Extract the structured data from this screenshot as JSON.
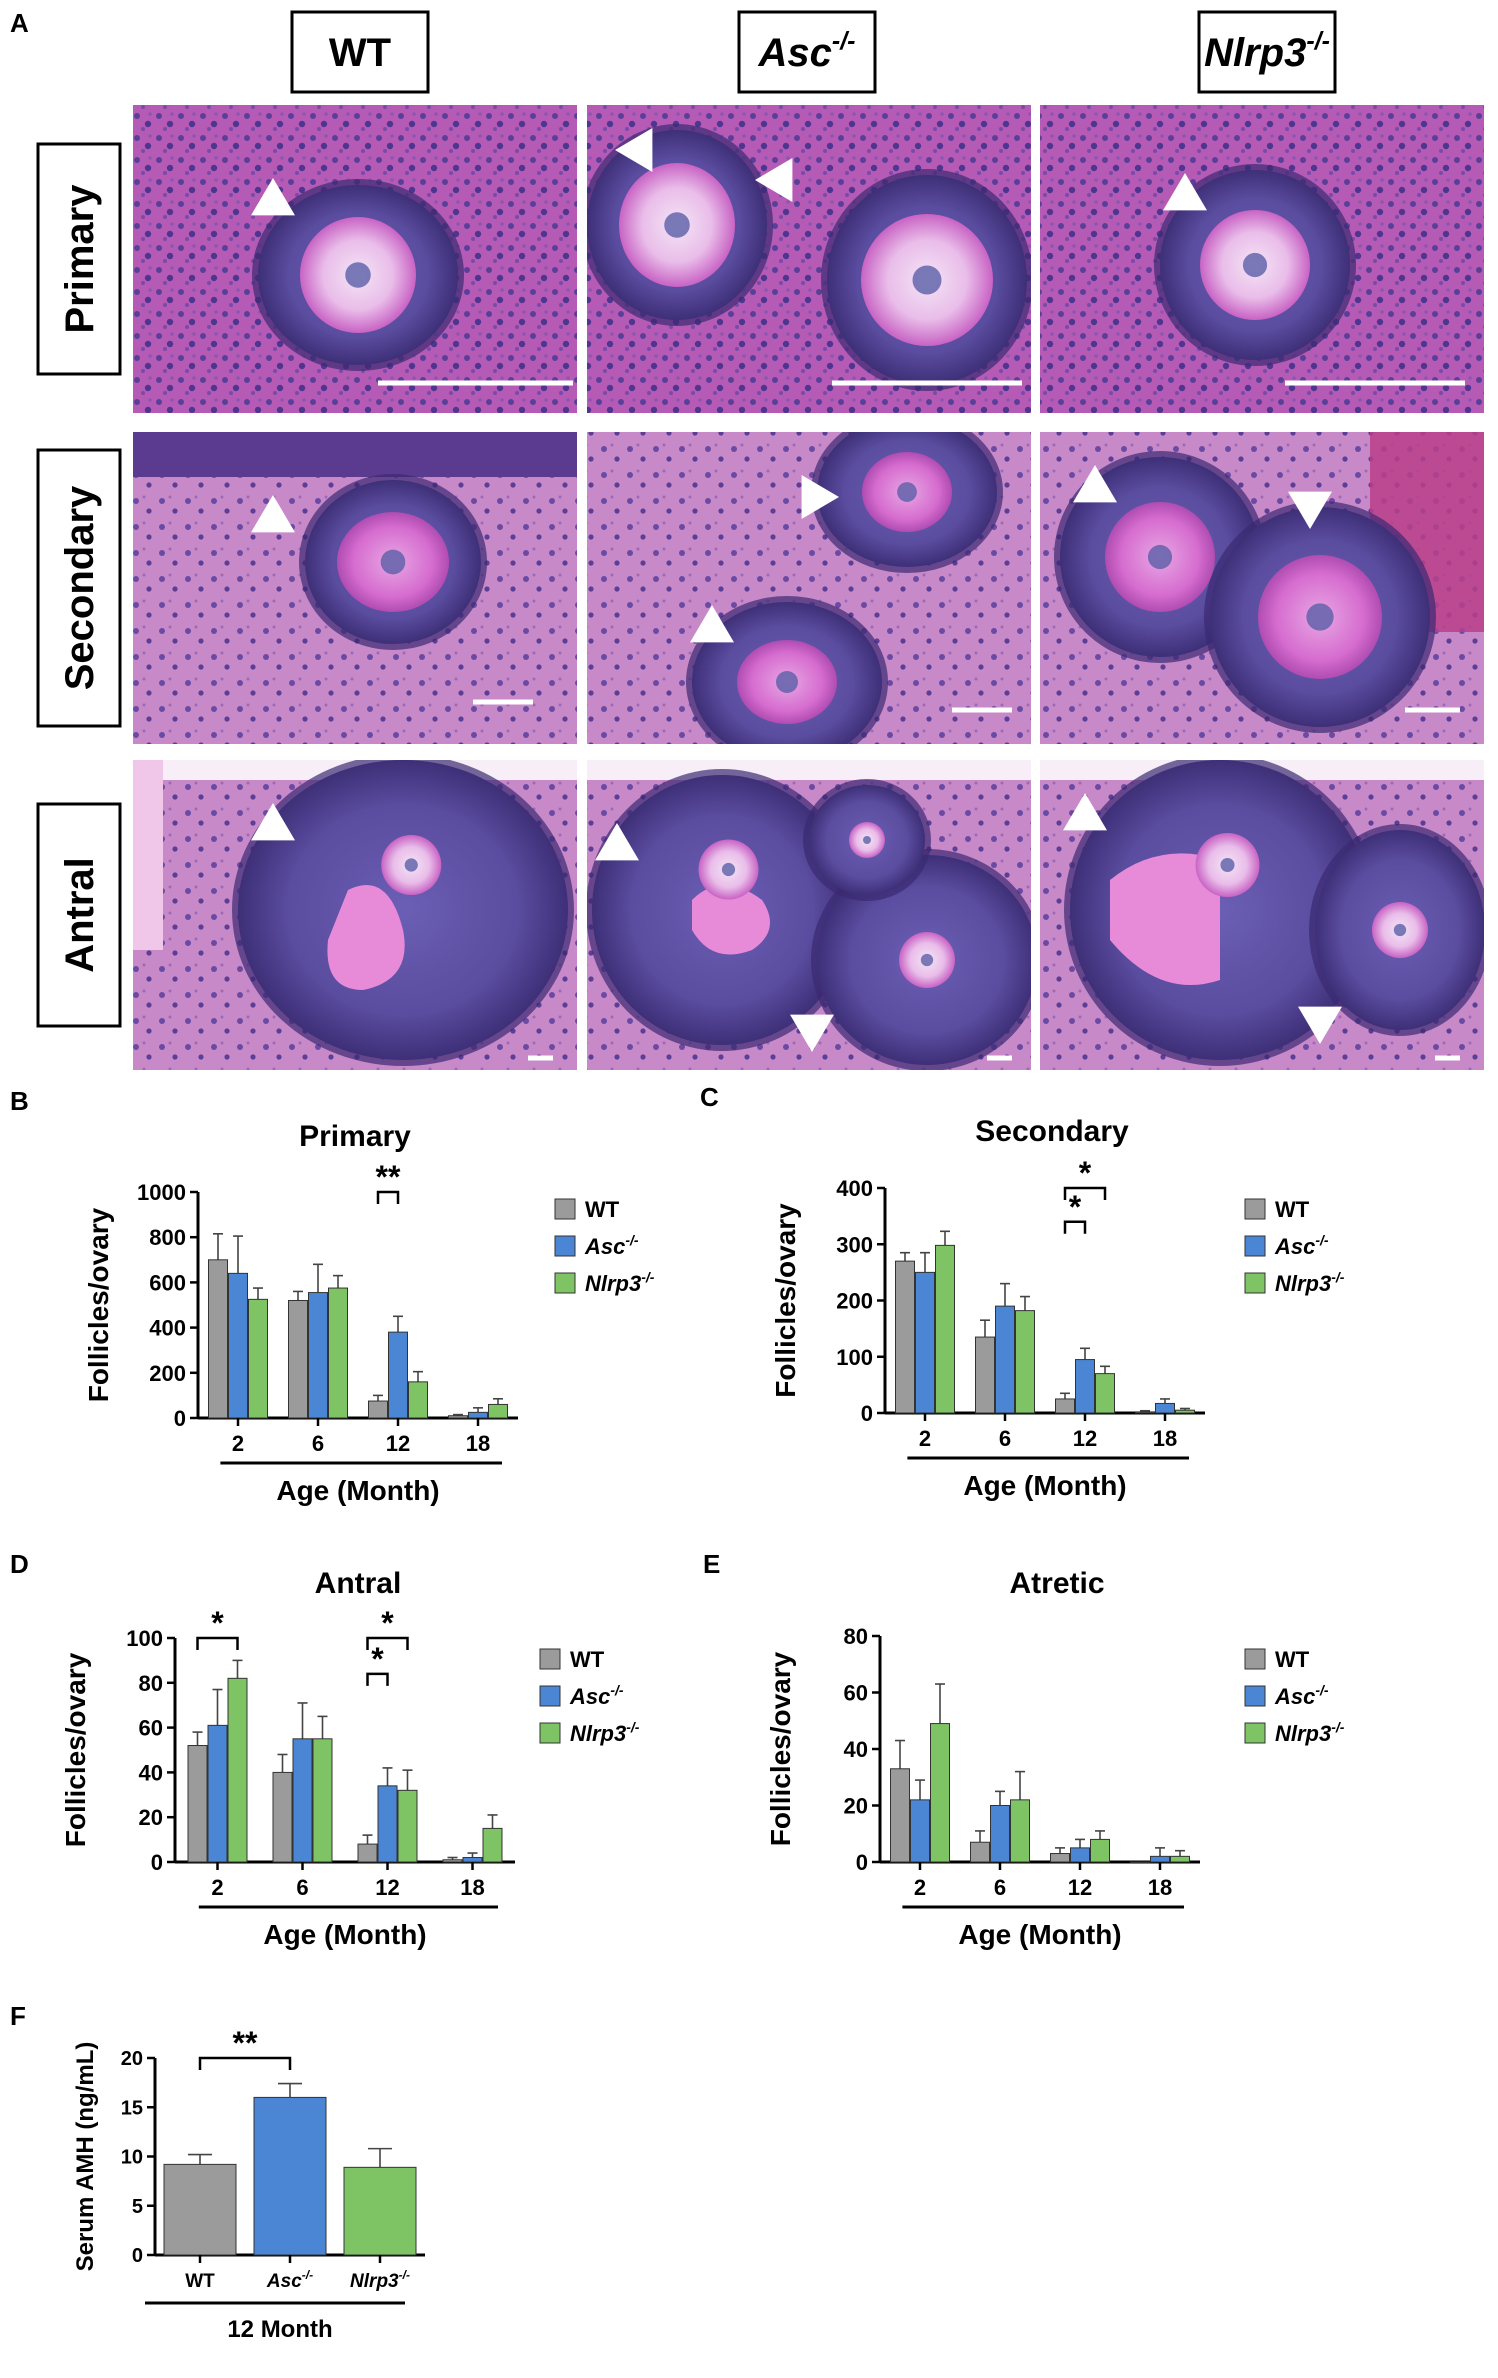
{
  "panel_letters": [
    "A",
    "B",
    "C",
    "D",
    "E",
    "F"
  ],
  "colors": {
    "WT": "#9b9b9b",
    "Asc": "#4a86d4",
    "Nlrp3": "#7ec465",
    "tissue_dark": "#4a3a8a",
    "tissue_pink": "#c75cc0",
    "tissue_light": "#e3b8e6"
  },
  "micrograph": {
    "columns": [
      {
        "base": "WT",
        "sup": ""
      },
      {
        "base": "Asc",
        "sup": "-/-"
      },
      {
        "base": "Nlrp3",
        "sup": "-/-"
      }
    ],
    "rows": [
      "Primary",
      "Secondary",
      "Antral"
    ]
  },
  "legend": [
    {
      "key": "WT",
      "base": "WT",
      "sup": ""
    },
    {
      "key": "Asc",
      "base": "Asc",
      "sup": "-/-"
    },
    {
      "key": "Nlrp3",
      "base": "Nlrp3",
      "sup": "-/-"
    }
  ],
  "chart_data": [
    {
      "id": "B",
      "type": "bar",
      "title": "Primary",
      "xlabel": "Age (Month)",
      "ylabel": "Follicles/ovary",
      "categories": [
        "2",
        "6",
        "12",
        "18"
      ],
      "ylim": [
        0,
        1000
      ],
      "yticks": [
        0,
        200,
        400,
        600,
        800,
        1000
      ],
      "series": [
        {
          "key": "WT",
          "values": [
            700,
            520,
            75,
            10
          ],
          "errors": [
            115,
            40,
            25,
            5
          ]
        },
        {
          "key": "Asc",
          "values": [
            640,
            555,
            380,
            25
          ],
          "errors": [
            165,
            125,
            70,
            20
          ]
        },
        {
          "key": "Nlrp3",
          "values": [
            525,
            575,
            160,
            60
          ],
          "errors": [
            50,
            55,
            45,
            25
          ]
        }
      ],
      "significance": [
        {
          "label": "**",
          "group": 2,
          "from": 0,
          "to": 1,
          "y": 1000
        }
      ]
    },
    {
      "id": "C",
      "type": "bar",
      "title": "Secondary",
      "xlabel": "Age (Month)",
      "ylabel": "Follicles/ovary",
      "categories": [
        "2",
        "6",
        "12",
        "18"
      ],
      "ylim": [
        0,
        400
      ],
      "yticks": [
        0,
        100,
        200,
        300,
        400
      ],
      "series": [
        {
          "key": "WT",
          "values": [
            270,
            135,
            25,
            2
          ],
          "errors": [
            15,
            30,
            10,
            2
          ]
        },
        {
          "key": "Asc",
          "values": [
            250,
            190,
            95,
            17
          ],
          "errors": [
            35,
            40,
            20,
            8
          ]
        },
        {
          "key": "Nlrp3",
          "values": [
            298,
            182,
            70,
            5
          ],
          "errors": [
            25,
            25,
            13,
            3
          ]
        }
      ],
      "significance": [
        {
          "label": "*",
          "group": 2,
          "from": 0,
          "to": 1,
          "y": 340
        },
        {
          "label": "*",
          "group": 2,
          "from": 0,
          "to": 2,
          "y": 400
        }
      ]
    },
    {
      "id": "D",
      "type": "bar",
      "title": "Antral",
      "xlabel": "Age (Month)",
      "ylabel": "Follicles/ovary",
      "categories": [
        "2",
        "6",
        "12",
        "18"
      ],
      "ylim": [
        0,
        100
      ],
      "yticks": [
        0,
        20,
        40,
        60,
        80,
        100
      ],
      "series": [
        {
          "key": "WT",
          "values": [
            52,
            40,
            8,
            1
          ],
          "errors": [
            6,
            8,
            4,
            1
          ]
        },
        {
          "key": "Asc",
          "values": [
            61,
            55,
            34,
            2
          ],
          "errors": [
            16,
            16,
            8,
            2
          ]
        },
        {
          "key": "Nlrp3",
          "values": [
            82,
            55,
            32,
            15
          ],
          "errors": [
            8,
            10,
            9,
            6
          ]
        }
      ],
      "significance": [
        {
          "label": "*",
          "group": 0,
          "from": 0,
          "to": 2,
          "y": 100
        },
        {
          "label": "*",
          "group": 2,
          "from": 0,
          "to": 1,
          "y": 84
        },
        {
          "label": "*",
          "group": 2,
          "from": 0,
          "to": 2,
          "y": 100
        }
      ]
    },
    {
      "id": "E",
      "type": "bar",
      "title": "Atretic",
      "xlabel": "Age (Month)",
      "ylabel": "Follicles/ovary",
      "categories": [
        "2",
        "6",
        "12",
        "18"
      ],
      "ylim": [
        0,
        80
      ],
      "yticks": [
        0,
        20,
        40,
        60,
        80
      ],
      "series": [
        {
          "key": "WT",
          "values": [
            33,
            7,
            3,
            0
          ],
          "errors": [
            10,
            4,
            2,
            0
          ]
        },
        {
          "key": "Asc",
          "values": [
            22,
            20,
            5,
            2
          ],
          "errors": [
            7,
            5,
            3,
            3
          ]
        },
        {
          "key": "Nlrp3",
          "values": [
            49,
            22,
            8,
            2
          ],
          "errors": [
            14,
            10,
            3,
            2
          ]
        }
      ],
      "significance": []
    },
    {
      "id": "F",
      "type": "bar",
      "title": "",
      "xlabel": "12 Month",
      "ylabel": "Serum AMH (ng/mL)",
      "categories": [
        {
          "base": "WT",
          "sup": ""
        },
        {
          "base": "Asc",
          "sup": "-/-"
        },
        {
          "base": "Nlrp3",
          "sup": "-/-"
        }
      ],
      "ylim": [
        0,
        20
      ],
      "yticks": [
        0,
        5,
        10,
        15,
        20
      ],
      "values": [
        9.2,
        16,
        8.9
      ],
      "errors": [
        1.0,
        1.4,
        1.9
      ],
      "colors": [
        "WT",
        "Asc",
        "Nlrp3"
      ],
      "significance": [
        {
          "label": "**",
          "from": 0,
          "to": 1,
          "y": 20
        }
      ]
    }
  ]
}
